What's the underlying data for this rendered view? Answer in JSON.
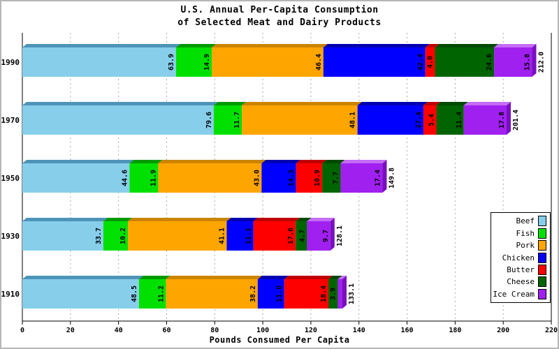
{
  "title": {
    "line1": "U.S. Annual Per-Capita Consumption",
    "line2": "of Selected Meat and Dairy Products"
  },
  "chart_data": {
    "type": "bar",
    "subtype": "stacked-horizontal-3d",
    "categories": [
      "1990",
      "1970",
      "1950",
      "1930",
      "1910"
    ],
    "series": [
      {
        "name": "Beef",
        "color": "#87CEEB",
        "top_color": "#4E94B8",
        "values": [
          63.9,
          79.6,
          44.6,
          33.7,
          48.5
        ]
      },
      {
        "name": "Fish",
        "color": "#00E000",
        "top_color": "#009900",
        "values": [
          14.9,
          11.7,
          11.9,
          10.2,
          11.2
        ]
      },
      {
        "name": "Pork",
        "color": "#FFA500",
        "top_color": "#CC8400",
        "values": [
          46.4,
          48.1,
          43.0,
          41.1,
          38.2
        ]
      },
      {
        "name": "Chicken",
        "color": "#0000FF",
        "top_color": "#0000B0",
        "values": [
          42.4,
          27.4,
          14.3,
          11.1,
          11.0
        ]
      },
      {
        "name": "Butter",
        "color": "#FF0000",
        "top_color": "#C00000",
        "values": [
          4.0,
          5.4,
          10.9,
          17.6,
          18.4
        ]
      },
      {
        "name": "Cheese",
        "color": "#006400",
        "top_color": "#004A00",
        "values": [
          24.6,
          11.4,
          7.7,
          4.7,
          3.9
        ]
      },
      {
        "name": "Ice Cream",
        "color": "#A020F0",
        "top_color": "#C46CF6",
        "side_color": "#7A0FC0",
        "values": [
          15.8,
          17.8,
          17.4,
          9.7,
          1.9
        ]
      }
    ],
    "totals": [
      212.0,
      201.4,
      149.8,
      128.1,
      133.1
    ],
    "xlabel": "Pounds Consumed Per Capita",
    "x_ticks": [
      0,
      20,
      40,
      60,
      80,
      100,
      120,
      140,
      160,
      180,
      200,
      220
    ],
    "xlim": [
      0,
      220
    ],
    "grid": "dashed-vertical",
    "legend_position": "bottom-right",
    "axis_color": "#000000",
    "grid_color": "#A8A8A8",
    "label_color": "#000000"
  }
}
